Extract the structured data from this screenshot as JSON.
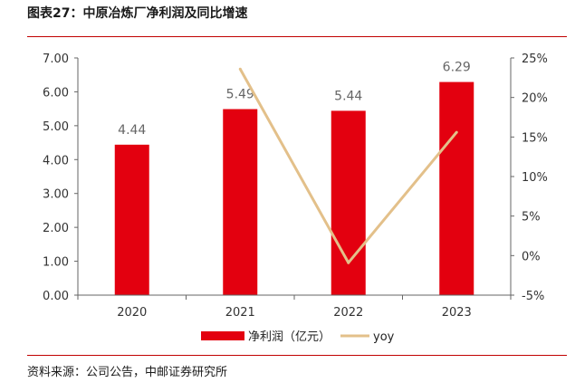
{
  "figure_title": "图表27：中原冶炼厂净利润及同比增速",
  "source_note": "资料来源：公司公告，中邮证券研究所",
  "colors": {
    "bar": "#e3000f",
    "line": "#e3c08a",
    "rule": "#c00000"
  },
  "chart_data": {
    "type": "bar",
    "categories": [
      "2020",
      "2021",
      "2022",
      "2023"
    ],
    "series": [
      {
        "name": "净利润（亿元）",
        "kind": "bar",
        "axis": "left",
        "values": [
          4.44,
          5.49,
          5.44,
          6.29
        ],
        "data_labels": [
          "4.44",
          "5.49",
          "5.44",
          "6.29"
        ]
      },
      {
        "name": "yoy",
        "kind": "line",
        "axis": "right",
        "values": [
          null,
          23.6,
          -0.9,
          15.6
        ]
      }
    ],
    "y_left": {
      "min": 0,
      "max": 7,
      "ticks": [
        "0.00",
        "1.00",
        "2.00",
        "3.00",
        "4.00",
        "5.00",
        "6.00",
        "7.00"
      ]
    },
    "y_right": {
      "min": -5,
      "max": 25,
      "ticks": [
        "-5%",
        "0%",
        "5%",
        "10%",
        "15%",
        "20%",
        "25%"
      ]
    },
    "grid": false,
    "legend_position": "bottom"
  }
}
